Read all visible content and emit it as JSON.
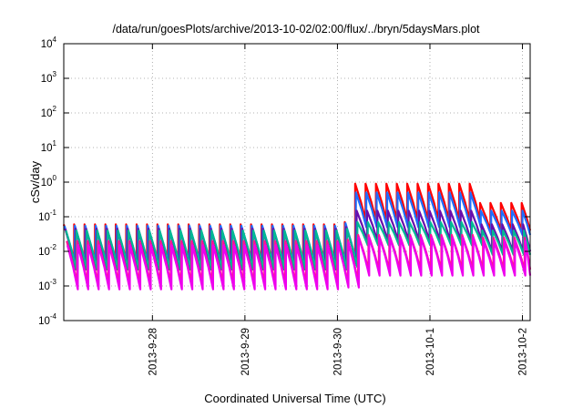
{
  "chart_data": {
    "type": "line",
    "title": "/data/run/goesPlots/archive/2013-10-02/02:00/flux/../bryn/5daysMars.plot",
    "xlabel": "Coordinated Universal Time (UTC)",
    "ylabel": "cSv/day",
    "y_scale": "log",
    "ylim": [
      0.0001,
      10000
    ],
    "xlim": [
      "2013-09-27 01:00",
      "2013-10-02 02:00"
    ],
    "grid": true,
    "y_ticks": [
      {
        "base": "10",
        "exp": "-4",
        "value": 0.0001
      },
      {
        "base": "10",
        "exp": "-3",
        "value": 0.001
      },
      {
        "base": "10",
        "exp": "-2",
        "value": 0.01
      },
      {
        "base": "10",
        "exp": "-1",
        "value": 0.1
      },
      {
        "base": "10",
        "exp": "0",
        "value": 1
      },
      {
        "base": "10",
        "exp": "1",
        "value": 10
      },
      {
        "base": "10",
        "exp": "2",
        "value": 100
      },
      {
        "base": "10",
        "exp": "3",
        "value": 1000
      },
      {
        "base": "10",
        "exp": "4",
        "value": 10000
      }
    ],
    "x_ticks": [
      "2013-9-28",
      "2013-9-29",
      "2013-9-30",
      "2013-10-1",
      "2013-10-2"
    ],
    "sawtooth_period_hours": 2.7,
    "series": [
      {
        "color": "#ff0000",
        "peaks": [
          0.06,
          0.06,
          0.07,
          0.9,
          0.25
        ],
        "troughs": [
          0.005,
          0.005,
          0.006,
          0.08,
          0.04
        ]
      },
      {
        "color": "#1e6fff",
        "peaks": [
          0.055,
          0.055,
          0.065,
          0.5,
          0.15
        ],
        "troughs": [
          0.004,
          0.004,
          0.005,
          0.05,
          0.03
        ]
      },
      {
        "color": "#6a0dad",
        "peaks": [
          0.045,
          0.045,
          0.05,
          0.15,
          0.06
        ],
        "troughs": [
          0.003,
          0.003,
          0.004,
          0.02,
          0.01
        ]
      },
      {
        "color": "#00b894",
        "peaks": [
          0.04,
          0.04,
          0.045,
          0.07,
          0.04
        ],
        "troughs": [
          0.003,
          0.003,
          0.0035,
          0.015,
          0.008
        ]
      },
      {
        "color": "#ff1493",
        "peaks": [
          0.02,
          0.02,
          0.022,
          0.03,
          0.025
        ],
        "troughs": [
          0.0012,
          0.0012,
          0.0014,
          0.003,
          0.003
        ]
      },
      {
        "color": "#ee00ee",
        "peaks": [
          0.015,
          0.015,
          0.018,
          0.025,
          0.02
        ],
        "troughs": [
          0.0008,
          0.0008,
          0.0009,
          0.002,
          0.002
        ]
      }
    ]
  }
}
